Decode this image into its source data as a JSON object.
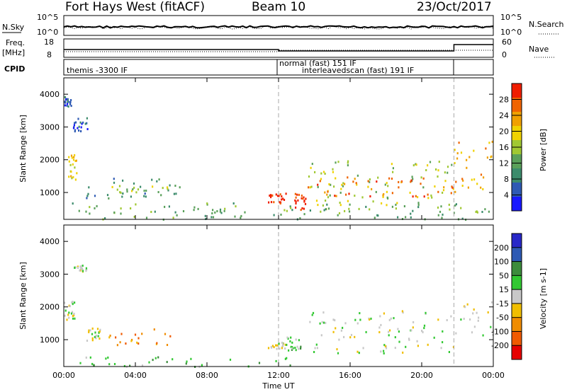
{
  "header": {
    "station": "Fort Hays West (fitACF)",
    "beam": "Beam 10",
    "date": "23/Oct/2017"
  },
  "top_panel": {
    "left_label": "N.Sky",
    "left_ticks": [
      "10^5",
      "10^0"
    ],
    "right_label": "N.Search",
    "right_ticks": [
      "10^5",
      "10^0"
    ]
  },
  "freq_panel": {
    "left_label_1": "Freq.",
    "left_label_2": "[MHz]",
    "left_ticks": [
      "18",
      "8"
    ],
    "right_label": "Nave",
    "right_ticks": [
      "60",
      "0"
    ]
  },
  "cpid_panel": {
    "label": "CPID",
    "segments": [
      {
        "text": "themis -3300 IF"
      },
      {
        "text": "normal (fast) 151 IF"
      },
      {
        "text": "interleavedscan (fast) 191 IF"
      }
    ]
  },
  "colors": {
    "power": [
      "#1818ff",
      "#2e5ab4",
      "#3c8c6c",
      "#5aa05a",
      "#a0c832",
      "#f0d200",
      "#f0a000",
      "#f06400",
      "#f01e00"
    ],
    "velocity": [
      "#e60000",
      "#f05a00",
      "#f08c00",
      "#f0be00",
      "#c8c8c8",
      "#32c832",
      "#3c8c3c",
      "#2e5ab4",
      "#2828c8"
    ]
  },
  "chart_data": [
    {
      "type": "heatmap",
      "name": "power",
      "ylabel": "Slant Range [km]",
      "xlabel": "Time UT",
      "x_tick_labels": [
        "00:00",
        "04:00",
        "08:00",
        "12:00",
        "16:00",
        "20:00",
        "00:00"
      ],
      "y_ticks": [
        1000,
        2000,
        3000,
        4000
      ],
      "ylim": [
        180,
        4500
      ],
      "xlim_hours": [
        0,
        24
      ],
      "colorbar": {
        "label": "Power [dB]",
        "ticks": [
          4,
          8,
          12,
          16,
          20,
          24,
          28
        ],
        "range": [
          0,
          32
        ]
      },
      "regions": [
        {
          "x0": 0.2,
          "x1": 0.7,
          "y0": 1400,
          "y1": 2200,
          "level": 5
        },
        {
          "x0": 0.5,
          "x1": 1.4,
          "y0": 2900,
          "y1": 3300,
          "level": 1
        },
        {
          "x0": 0.0,
          "x1": 0.4,
          "y0": 3650,
          "y1": 3950,
          "level": 1
        },
        {
          "x0": 1.2,
          "x1": 6.5,
          "y0": 850,
          "y1": 1450,
          "level": 2
        },
        {
          "x0": 2.5,
          "x1": 6.5,
          "y0": 1000,
          "y1": 1250,
          "level": 4
        },
        {
          "x0": 11.4,
          "x1": 12.4,
          "y0": 700,
          "y1": 1000,
          "level": 8
        },
        {
          "x0": 12.8,
          "x1": 13.5,
          "y0": 500,
          "y1": 1000,
          "level": 8
        },
        {
          "x0": 13.6,
          "x1": 21.8,
          "y0": 500,
          "y1": 2000,
          "level": 4
        },
        {
          "x0": 13.6,
          "x1": 21.8,
          "y0": 900,
          "y1": 1500,
          "level": 7
        },
        {
          "x0": 21.8,
          "x1": 24.0,
          "y0": 1000,
          "y1": 2600,
          "level": 6
        },
        {
          "x0": 0.0,
          "x1": 24.0,
          "y0": 200,
          "y1": 700,
          "level": 3
        }
      ]
    },
    {
      "type": "heatmap",
      "name": "velocity",
      "ylabel": "Slant Range [km]",
      "xlabel": "Time UT",
      "x_tick_labels": [
        "00:00",
        "04:00",
        "08:00",
        "12:00",
        "16:00",
        "20:00",
        "00:00"
      ],
      "y_ticks": [
        1000,
        2000,
        3000,
        4000
      ],
      "ylim": [
        180,
        4500
      ],
      "xlim_hours": [
        0,
        24
      ],
      "colorbar": {
        "label": "Velocity [m s-1]",
        "ticks": [
          200,
          100,
          50,
          15,
          -15,
          -50,
          -100,
          -200
        ],
        "range": [
          -250,
          250
        ]
      },
      "regions": [
        {
          "x0": 0.0,
          "x1": 0.6,
          "y0": 1600,
          "y1": 2200,
          "level": 4
        },
        {
          "x0": 1.2,
          "x1": 2.0,
          "y0": 1000,
          "y1": 1400,
          "level": 4
        },
        {
          "x0": 2.0,
          "x1": 6.5,
          "y0": 850,
          "y1": 1350,
          "level": 2
        },
        {
          "x0": 11.4,
          "x1": 12.4,
          "y0": 750,
          "y1": 950,
          "level": 4
        },
        {
          "x0": 12.4,
          "x1": 13.2,
          "y0": 700,
          "y1": 1100,
          "level": 5
        },
        {
          "x0": 13.6,
          "x1": 21.8,
          "y0": 600,
          "y1": 1900,
          "level": 4
        },
        {
          "x0": 21.8,
          "x1": 24.0,
          "y0": 1100,
          "y1": 2200,
          "level": 4
        },
        {
          "x0": 0.0,
          "x1": 13.0,
          "y0": 200,
          "y1": 500,
          "level": 5
        },
        {
          "x0": 0.5,
          "x1": 1.3,
          "y0": 3100,
          "y1": 3300,
          "level": 4
        }
      ]
    }
  ]
}
